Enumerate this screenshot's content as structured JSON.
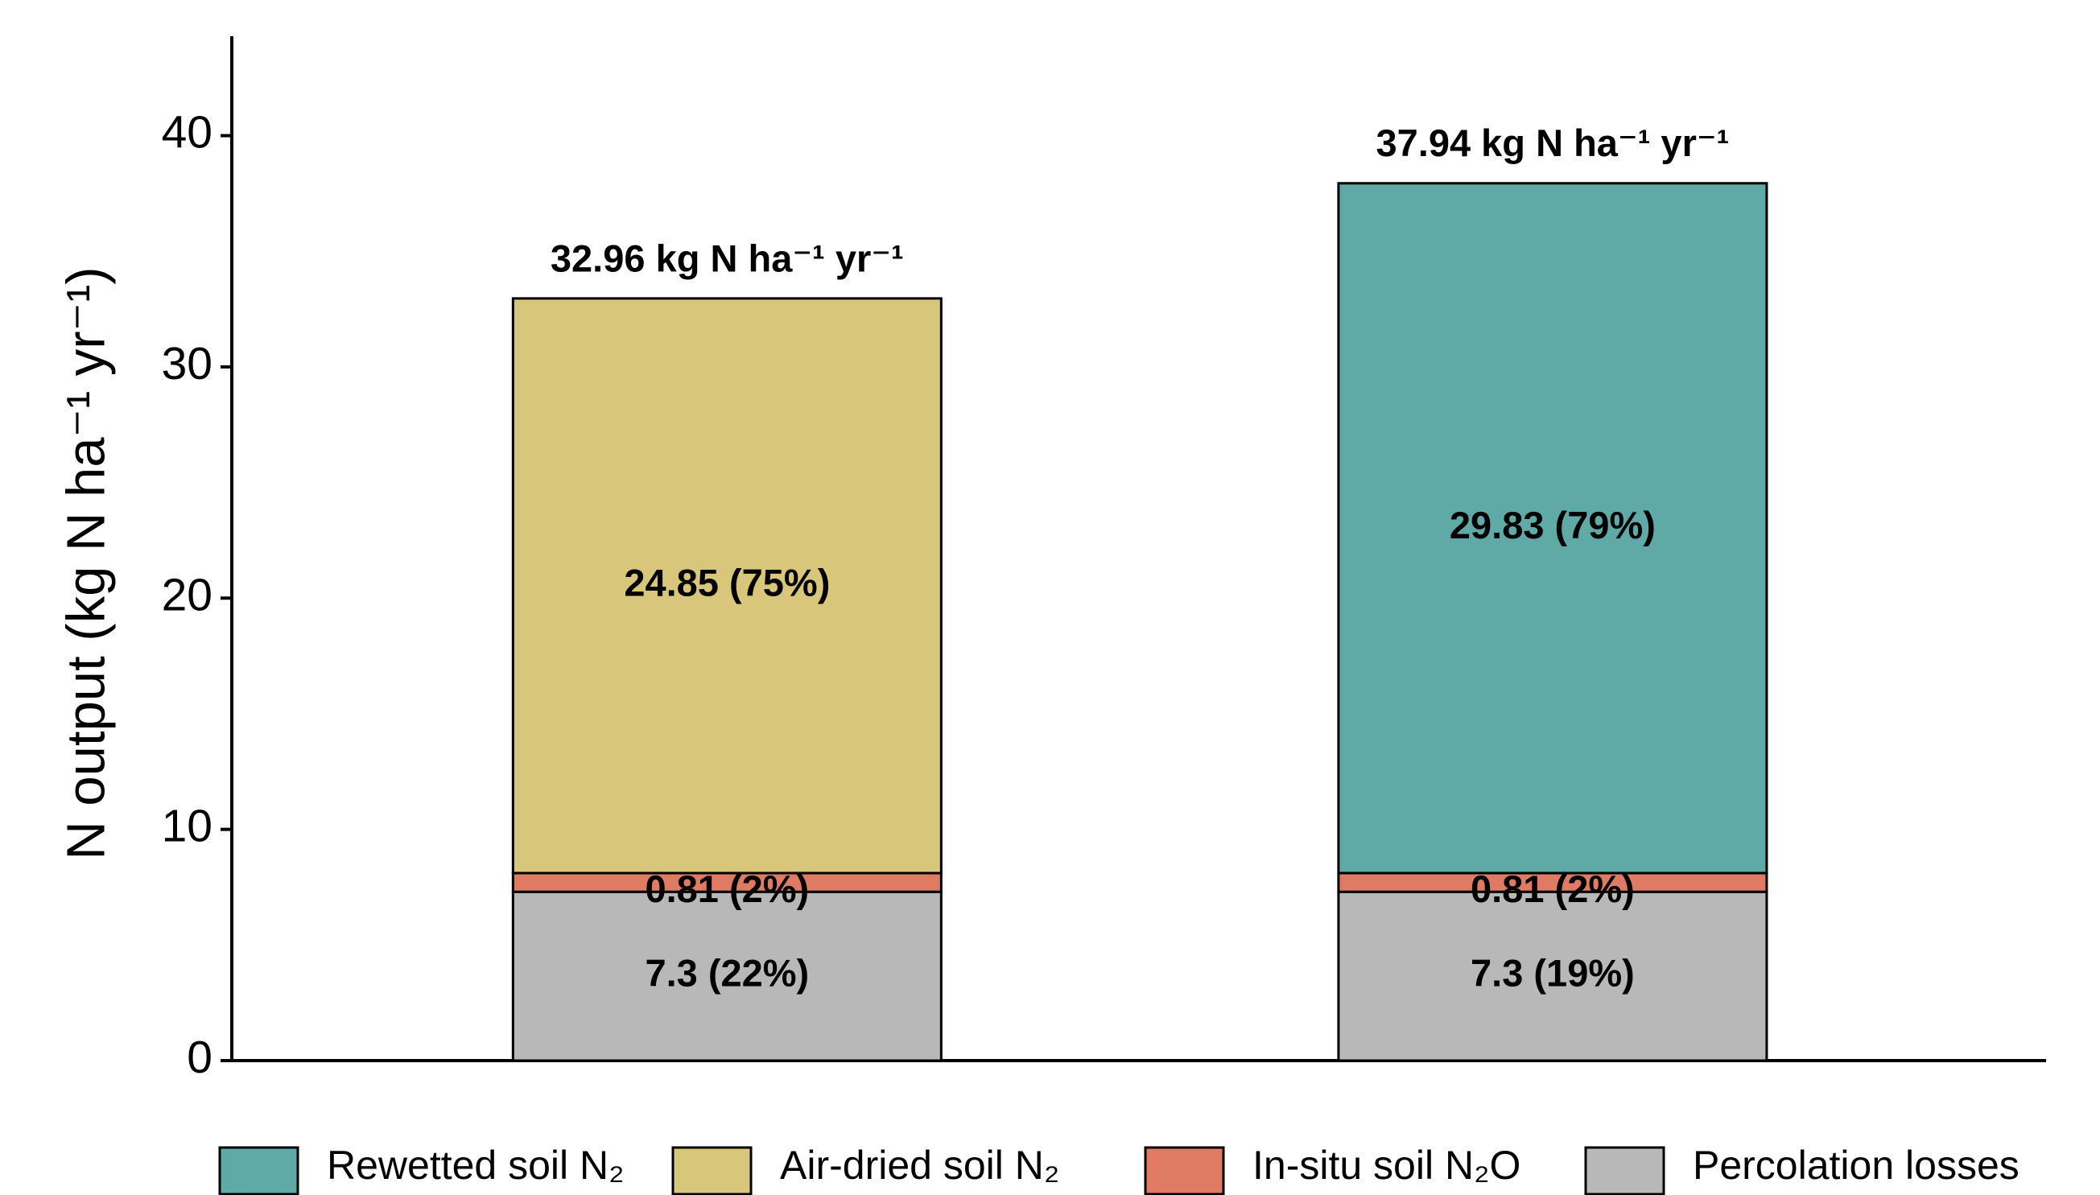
{
  "chart_data": {
    "type": "stacked_bar",
    "y_label": "N output (kg N ha⁻¹ yr⁻¹)",
    "categories": [
      null,
      null
    ],
    "series": [
      {
        "name": "Percolation losses",
        "color": "#b8b8b8",
        "values": [
          7.3,
          7.3
        ],
        "value_labels": [
          "7.3 (22%)",
          "7.3 (19%)"
        ]
      },
      {
        "name": "In-situ soil N₂O",
        "color": "#e07b63",
        "values": [
          0.81,
          0.81
        ],
        "value_labels": [
          "0.81 (2%)",
          "0.81 (2%)"
        ]
      },
      {
        "name": "Air-dried soil N₂",
        "color": "#d8c77b",
        "values": [
          24.85,
          null
        ],
        "value_labels": [
          "24.85 (75%)",
          null
        ]
      },
      {
        "name": "Rewetted soil N₂",
        "color": "#5faaa6",
        "values": [
          null,
          29.83
        ],
        "value_labels": [
          null,
          "29.83 (79%)"
        ]
      }
    ],
    "annotations": [
      "32.96 kg N ha⁻¹ yr⁻¹",
      "37.94 kg N ha⁻¹ yr⁻¹"
    ],
    "ylim": [
      0,
      44.3
    ],
    "yticks": [
      0,
      10,
      20,
      30,
      40
    ],
    "grid": false,
    "legend": "bottom"
  }
}
